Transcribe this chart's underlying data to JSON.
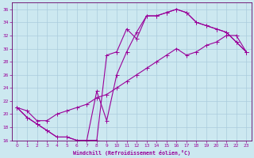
{
  "xlabel": "Windchill (Refroidissement éolien,°C)",
  "bg_color": "#cce8f0",
  "line_color": "#990099",
  "grid_color": "#aaccdd",
  "spine_color": "#660066",
  "xlim": [
    -0.5,
    23.5
  ],
  "ylim": [
    16,
    37
  ],
  "xticks": [
    0,
    1,
    2,
    3,
    4,
    5,
    6,
    7,
    8,
    9,
    10,
    11,
    12,
    13,
    14,
    15,
    16,
    17,
    18,
    19,
    20,
    21,
    22,
    23
  ],
  "yticks": [
    16,
    18,
    20,
    22,
    24,
    26,
    28,
    30,
    32,
    34,
    36
  ],
  "line1_x": [
    0,
    1,
    2,
    3,
    4,
    5,
    6,
    7,
    8,
    9,
    10,
    11,
    12,
    13,
    14,
    15,
    16,
    17,
    18,
    19,
    20,
    21,
    22,
    23
  ],
  "line1_y": [
    21.0,
    19.5,
    18.5,
    17.5,
    16.5,
    16.5,
    16.0,
    16.0,
    16.0,
    29.0,
    29.5,
    33.0,
    31.5,
    35.0,
    35.0,
    35.5,
    36.0,
    35.5,
    34.0,
    33.5,
    33.0,
    32.5,
    31.0,
    29.5
  ],
  "line2_x": [
    0,
    1,
    2,
    3,
    4,
    5,
    6,
    7,
    8,
    9,
    10,
    11,
    12,
    13,
    14,
    15,
    16,
    17,
    18,
    19,
    20,
    21,
    22,
    23
  ],
  "line2_y": [
    21.0,
    19.5,
    18.5,
    17.5,
    16.5,
    16.5,
    16.0,
    16.0,
    23.5,
    19.0,
    26.0,
    29.5,
    32.5,
    35.0,
    35.0,
    35.5,
    36.0,
    35.5,
    34.0,
    33.5,
    33.0,
    32.5,
    31.0,
    29.5
  ],
  "line3_x": [
    0,
    1,
    2,
    3,
    4,
    5,
    6,
    7,
    8,
    9,
    10,
    11,
    12,
    13,
    14,
    15,
    16,
    17,
    18,
    19,
    20,
    21,
    22,
    23
  ],
  "line3_y": [
    21.0,
    20.5,
    19.0,
    19.0,
    20.0,
    20.5,
    21.0,
    21.5,
    22.5,
    23.0,
    24.0,
    25.0,
    26.0,
    27.0,
    28.0,
    29.0,
    30.0,
    29.0,
    29.5,
    30.5,
    31.0,
    32.0,
    32.0,
    29.5
  ]
}
